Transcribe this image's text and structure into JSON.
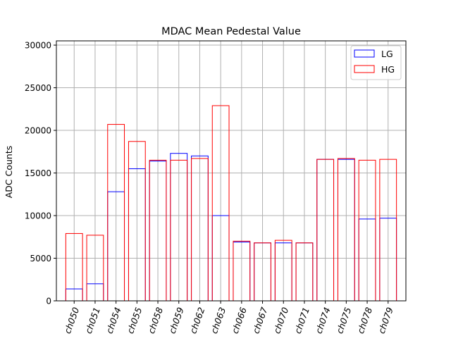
{
  "chart_data": {
    "type": "bar",
    "title": "MDAC Mean Pedestal Value",
    "xlabel": "",
    "ylabel": "ADC Counts",
    "ylim": [
      0,
      30500
    ],
    "yticks": [
      0,
      5000,
      10000,
      15000,
      20000,
      25000,
      30000
    ],
    "grid": true,
    "legend_position": "top-right",
    "categories": [
      "ch050",
      "ch051",
      "ch054",
      "ch055",
      "ch058",
      "ch059",
      "ch062",
      "ch063",
      "ch066",
      "ch067",
      "ch070",
      "ch071",
      "ch074",
      "ch075",
      "ch078",
      "ch079"
    ],
    "series": [
      {
        "name": "LG",
        "color": "#0000ff",
        "values": [
          1400,
          2000,
          12800,
          15500,
          16400,
          17300,
          17000,
          10000,
          6900,
          6800,
          6800,
          6800,
          16600,
          16600,
          9600,
          9700
        ]
      },
      {
        "name": "HG",
        "color": "#ff0000",
        "values": [
          7900,
          7700,
          20700,
          18700,
          16500,
          16500,
          16700,
          22900,
          7000,
          6800,
          7100,
          6800,
          16600,
          16700,
          16500,
          16600
        ]
      }
    ],
    "grid_color": "#b0b0b0",
    "x_tick_rotation_deg": 70
  }
}
